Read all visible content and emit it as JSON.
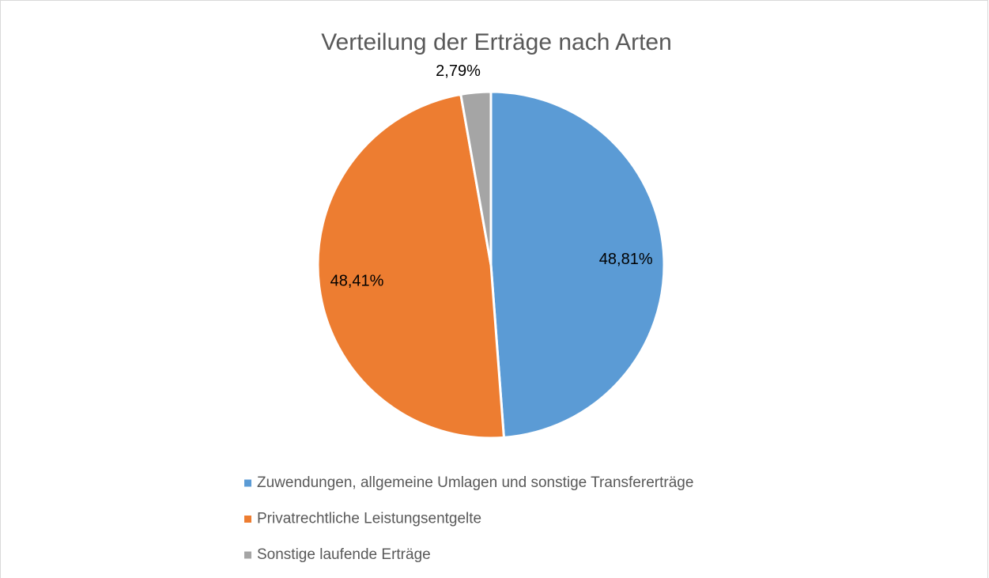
{
  "chart_data": {
    "type": "pie",
    "title": "Verteilung der Erträge nach Arten",
    "categories": [
      "Zuwendungen, allgemeine Umlagen und sonstige Transfererträge",
      "Privatrechtliche Leistungsentgelte",
      "Sonstige laufende Erträge"
    ],
    "values": [
      48.81,
      48.41,
      2.79
    ],
    "value_labels": [
      "48,81%",
      "48,41%",
      "2,79%"
    ],
    "colors": [
      "#5b9bd5",
      "#ed7d31",
      "#a5a5a5"
    ],
    "legend": "bottom"
  }
}
